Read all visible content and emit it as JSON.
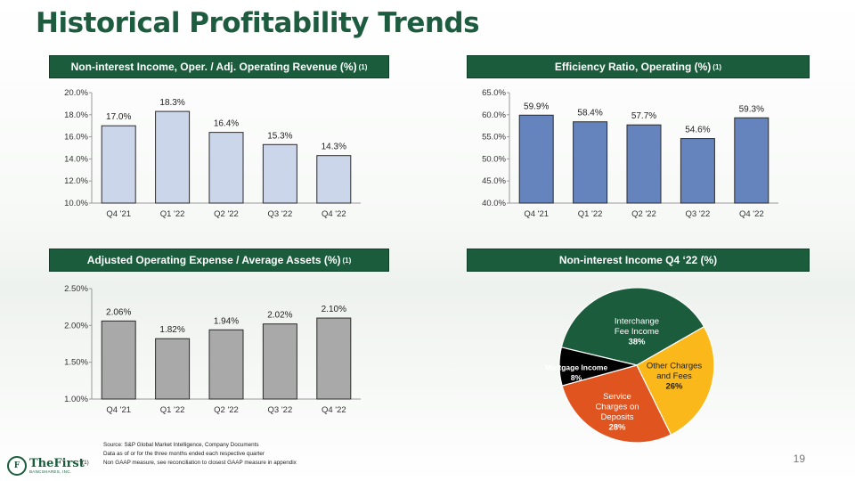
{
  "page": {
    "title": "Historical Profitability Trends",
    "page_number": "19",
    "colors": {
      "brand": "#1a5c3c",
      "bar_light": "#ccd6ea",
      "bar_blue": "#6584bd",
      "bar_gray": "#a9a9a9"
    }
  },
  "headers": {
    "h1": "Non-interest Income, Oper. / Adj. Operating Revenue (%)",
    "h2": "Efficiency Ratio, Operating (%)",
    "h3": "Adjusted Operating Expense / Average Assets (%)",
    "h4": "Non-interest Income Q4 ‘22 (%)",
    "footnote_mark": "(1)"
  },
  "footnotes": {
    "source": "Source: S&P Global Market Intelligence, Company Documents",
    "data_note": "Data as of or for the three months ended each respective quarter",
    "marker": "(1)",
    "nongaap": "Non GAAP measure, see reconciliation to closest GAAP measure in appendix"
  },
  "logo": {
    "name": "TheFirst",
    "sub": "BANCSHARES, INC.",
    "seal": "F"
  },
  "chart_data": [
    {
      "type": "bar",
      "title": "Non-interest Income, Oper. / Adj. Operating Revenue (%)",
      "categories": [
        "Q4 '21",
        "Q1 '22",
        "Q2 '22",
        "Q3 '22",
        "Q4 '22"
      ],
      "values": [
        17.0,
        18.3,
        16.4,
        15.3,
        14.3
      ],
      "labels": [
        "17.0%",
        "18.3%",
        "16.4%",
        "15.3%",
        "14.3%"
      ],
      "yticks": [
        "10.0%",
        "12.0%",
        "14.0%",
        "16.0%",
        "18.0%",
        "20.0%"
      ],
      "ylim": [
        10,
        20
      ]
    },
    {
      "type": "bar",
      "title": "Efficiency Ratio, Operating (%)",
      "categories": [
        "Q4 '21",
        "Q1 '22",
        "Q2 '22",
        "Q3 '22",
        "Q4 '22"
      ],
      "values": [
        59.9,
        58.4,
        57.7,
        54.6,
        59.3
      ],
      "labels": [
        "59.9%",
        "58.4%",
        "57.7%",
        "54.6%",
        "59.3%"
      ],
      "yticks": [
        "40.0%",
        "45.0%",
        "50.0%",
        "55.0%",
        "60.0%",
        "65.0%"
      ],
      "ylim": [
        40,
        65
      ]
    },
    {
      "type": "bar",
      "title": "Adjusted Operating Expense / Average Assets (%)",
      "categories": [
        "Q4 '21",
        "Q1 '22",
        "Q2 '22",
        "Q3 '22",
        "Q4 '22"
      ],
      "values": [
        2.06,
        1.82,
        1.94,
        2.02,
        2.1
      ],
      "labels": [
        "2.06%",
        "1.82%",
        "1.94%",
        "2.02%",
        "2.10%"
      ],
      "yticks": [
        "1.00%",
        "1.50%",
        "2.00%",
        "2.50%"
      ],
      "ylim": [
        1.0,
        2.5
      ]
    },
    {
      "type": "pie",
      "title": "Non-interest Income Q4 ‘22 (%)",
      "slices": [
        {
          "label": "Interchange Fee Income",
          "pct": "38%",
          "value": 38,
          "color": "#1a5c3c"
        },
        {
          "label": "Other Charges and Fees",
          "pct": "26%",
          "value": 26,
          "color": "#fbb81a"
        },
        {
          "label": "Service Charges on Deposits",
          "pct": "28%",
          "value": 28,
          "color": "#e05420"
        },
        {
          "label": "Mortgage Income",
          "pct": "8%",
          "value": 8,
          "color": "#000000"
        }
      ]
    }
  ]
}
